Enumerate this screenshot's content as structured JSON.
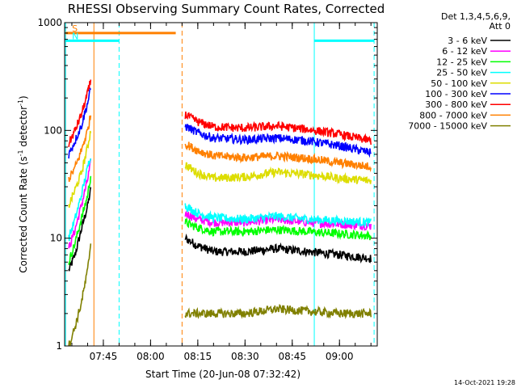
{
  "chart_data": {
    "type": "line",
    "title": "RHESSI Observing Summary Count Rates, Corrected",
    "xlabel": "Start Time (20-Jun-08 07:32:42)",
    "ylabel_main": "Corrected Count Rate (s",
    "ylabel_sup1": "-1",
    "ylabel_mid": " detector",
    "ylabel_sup2": "-1",
    "ylabel_end": ")",
    "y_scale": "log",
    "ylim": [
      1,
      1000
    ],
    "xlim": [
      "07:32:42",
      "09:12:00"
    ],
    "x_ticks": [
      "07:45",
      "08:00",
      "08:15",
      "08:30",
      "08:45",
      "09:00"
    ],
    "y_ticks": [
      "1",
      "10",
      "100",
      "1000"
    ],
    "legend_header": "Det 1,3,4,5,6,9,",
    "legend_header2": "Att 0",
    "legend_position": "right",
    "series": [
      {
        "name": "3 - 6 keV",
        "color": "#000000",
        "segments": [
          {
            "x": [
              "07:34",
              "07:36",
              "07:38",
              "07:40",
              "07:41"
            ],
            "y": [
              5,
              7,
              12,
              20,
              28
            ]
          },
          {
            "x": [
              "08:11",
              "08:15",
              "08:20",
              "08:30",
              "08:40",
              "08:50",
              "09:00",
              "09:10"
            ],
            "y": [
              10,
              8.5,
              7.5,
              7.5,
              8,
              7.5,
              7,
              6.5
            ]
          }
        ]
      },
      {
        "name": "6 - 12 keV",
        "color": "#ff00ff",
        "segments": [
          {
            "x": [
              "07:34",
              "07:36",
              "07:38",
              "07:40",
              "07:41"
            ],
            "y": [
              8,
              12,
              20,
              35,
              50
            ]
          },
          {
            "x": [
              "08:11",
              "08:15",
              "08:20",
              "08:30",
              "08:40",
              "08:50",
              "09:00",
              "09:10"
            ],
            "y": [
              17,
              15,
              14,
              14,
              15,
              14,
              13.5,
              13
            ]
          }
        ]
      },
      {
        "name": "12 - 25 keV",
        "color": "#00ff00",
        "segments": [
          {
            "x": [
              "07:34",
              "07:36",
              "07:38",
              "07:40",
              "07:41"
            ],
            "y": [
              6,
              9,
              15,
              25,
              38
            ]
          },
          {
            "x": [
              "08:11",
              "08:15",
              "08:20",
              "08:30",
              "08:40",
              "08:50",
              "09:00",
              "09:10"
            ],
            "y": [
              14,
              12.5,
              11.5,
              11.5,
              12,
              11.5,
              11,
              10.5
            ]
          }
        ]
      },
      {
        "name": "25 - 50 keV",
        "color": "#00ffff",
        "segments": [
          {
            "x": [
              "07:34",
              "07:36",
              "07:38",
              "07:40",
              "07:41"
            ],
            "y": [
              10,
              15,
              25,
              45,
              60
            ]
          },
          {
            "x": [
              "08:11",
              "08:15",
              "08:20",
              "08:30",
              "08:40",
              "08:50",
              "09:00",
              "09:10"
            ],
            "y": [
              20,
              17,
              15.5,
              15,
              16,
              15,
              14.5,
              14
            ]
          }
        ]
      },
      {
        "name": "50 - 100 keV",
        "color": "#dddd00",
        "segments": [
          {
            "x": [
              "07:34",
              "07:36",
              "07:38",
              "07:40",
              "07:41"
            ],
            "y": [
              20,
              28,
              40,
              70,
              100
            ]
          },
          {
            "x": [
              "08:11",
              "08:15",
              "08:20",
              "08:30",
              "08:40",
              "08:50",
              "09:00",
              "09:10"
            ],
            "y": [
              48,
              40,
              36,
              37,
              41,
              39,
              36,
              34
            ]
          }
        ]
      },
      {
        "name": "100 - 300 keV",
        "color": "#0000ff",
        "segments": [
          {
            "x": [
              "07:34",
              "07:36",
              "07:38",
              "07:40",
              "07:41"
            ],
            "y": [
              60,
              80,
              110,
              180,
              240
            ]
          },
          {
            "x": [
              "08:11",
              "08:15",
              "08:20",
              "08:30",
              "08:40",
              "08:50",
              "09:00",
              "09:10"
            ],
            "y": [
              110,
              95,
              85,
              82,
              85,
              80,
              72,
              62
            ]
          }
        ]
      },
      {
        "name": "300 - 800 keV",
        "color": "#ff0000",
        "segments": [
          {
            "x": [
              "07:34",
              "07:36",
              "07:38",
              "07:40",
              "07:41"
            ],
            "y": [
              75,
              100,
              140,
              220,
              290
            ]
          },
          {
            "x": [
              "08:11",
              "08:15",
              "08:20",
              "08:30",
              "08:40",
              "08:50",
              "09:00",
              "09:10"
            ],
            "y": [
              140,
              120,
              108,
              105,
              110,
              102,
              92,
              80
            ]
          }
        ]
      },
      {
        "name": "800 - 7000 keV",
        "color": "#ff8000",
        "segments": [
          {
            "x": [
              "07:34",
              "07:36",
              "07:38",
              "07:40",
              "07:41"
            ],
            "y": [
              35,
              45,
              65,
              100,
              140
            ]
          },
          {
            "x": [
              "08:11",
              "08:15",
              "08:20",
              "08:30",
              "08:40",
              "08:50",
              "09:00",
              "09:10"
            ],
            "y": [
              75,
              65,
              58,
              56,
              58,
              55,
              50,
              46
            ]
          }
        ]
      },
      {
        "name": "7000 - 15000 keV",
        "color": "#808000",
        "segments": [
          {
            "x": [
              "07:34",
              "07:36",
              "07:38",
              "07:40",
              "07:41"
            ],
            "y": [
              1,
              1.5,
              2.5,
              5,
              9
            ]
          },
          {
            "x": [
              "08:11",
              "08:20",
              "08:30",
              "08:40",
              "08:50",
              "09:00",
              "09:10"
            ],
            "y": [
              2,
              2,
              2,
              2.2,
              2.1,
              2,
              2
            ]
          }
        ]
      }
    ],
    "annotations": [
      {
        "label": "S",
        "color": "#ff8000",
        "y": 800,
        "x_start": "07:33",
        "x_end": "08:08"
      },
      {
        "label": "N",
        "color": "#00ffff",
        "y": 680,
        "x_start": "07:33",
        "x_end": "07:50"
      },
      {
        "label": "",
        "color": "#00ffff",
        "y": 680,
        "x_start": "08:52",
        "x_end": "09:11"
      }
    ],
    "vertical_lines": [
      {
        "x": "07:42",
        "color": "#ff8000",
        "style": "solid"
      },
      {
        "x": "07:33",
        "color": "#00ffff",
        "style": "solid"
      },
      {
        "x": "07:50",
        "color": "#00ffff",
        "style": "dashed"
      },
      {
        "x": "08:10",
        "color": "#ff8000",
        "style": "dashed"
      },
      {
        "x": "08:52",
        "color": "#00ffff",
        "style": "solid"
      },
      {
        "x": "09:11",
        "color": "#00ffff",
        "style": "dashed"
      }
    ],
    "footer_date": "14-Oct-2021 19:28"
  }
}
